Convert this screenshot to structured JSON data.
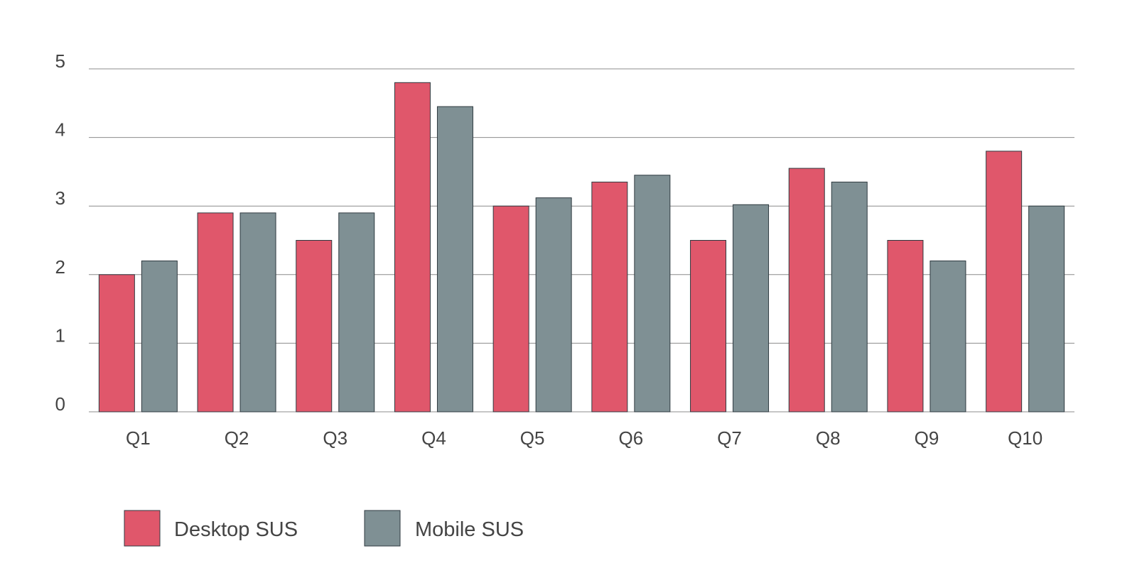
{
  "chart_data": {
    "type": "bar",
    "title": "",
    "xlabel": "",
    "ylabel": "",
    "categories": [
      "Q1",
      "Q2",
      "Q3",
      "Q4",
      "Q5",
      "Q6",
      "Q7",
      "Q8",
      "Q9",
      "Q10"
    ],
    "series": [
      {
        "name": "Desktop SUS",
        "color": "#e0576b",
        "values": [
          2.0,
          2.9,
          2.5,
          4.8,
          3.0,
          3.35,
          2.5,
          3.55,
          2.5,
          3.8
        ]
      },
      {
        "name": "Mobile SUS",
        "color": "#7f9094",
        "values": [
          2.2,
          2.9,
          2.9,
          4.45,
          3.12,
          3.45,
          3.02,
          3.35,
          2.2,
          3.0
        ]
      }
    ],
    "ylim": [
      0,
      5
    ],
    "yticks": [
      "0",
      "1",
      "2",
      "3",
      "4",
      "5"
    ],
    "grid": true,
    "legend_position": "bottom-left"
  }
}
